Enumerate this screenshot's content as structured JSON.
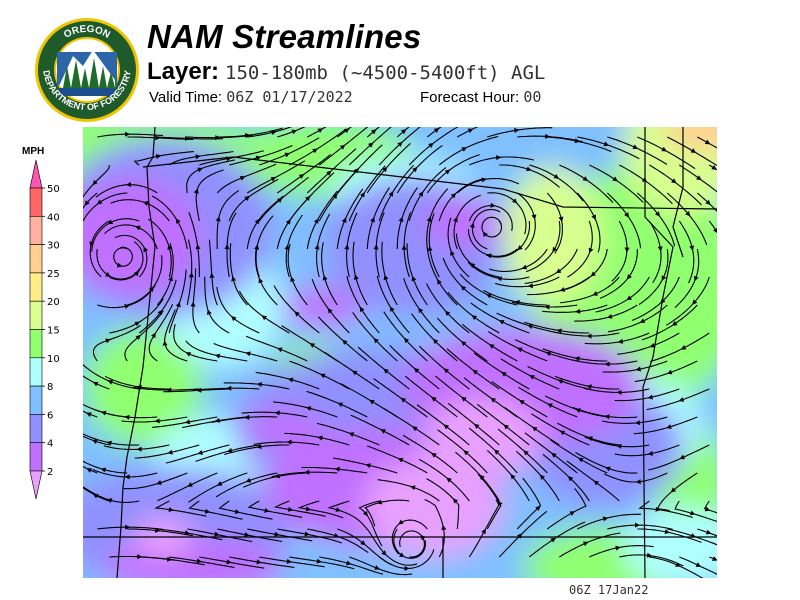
{
  "header": {
    "title": "NAM Streamlines",
    "layer_label": "Layer:",
    "layer_value": "150-180mb (~4500-5400ft) AGL",
    "valid_label": "Valid Time:",
    "valid_value": "06Z 01/17/2022",
    "forecast_label": "Forecast Hour:",
    "forecast_value": "00"
  },
  "logo": {
    "text_top": "OREGON",
    "text_bottom": "DEPARTMENT OF FORESTRY",
    "colors": {
      "ring": "#1e5a2a",
      "border": "#f2c400",
      "inner": "#ffffff",
      "water": "#1f4e8c"
    }
  },
  "legend": {
    "unit": "MPH",
    "ticks": [
      "50",
      "40",
      "30",
      "25",
      "20",
      "15",
      "10",
      "8",
      "6",
      "4",
      "2"
    ],
    "over_color": "#ff55b5",
    "under_color": "#e8a0ff",
    "bins": [
      {
        "range": "40-50",
        "color": "#ff6666"
      },
      {
        "range": "30-40",
        "color": "#ffb0a0"
      },
      {
        "range": "25-30",
        "color": "#ffd090"
      },
      {
        "range": "20-25",
        "color": "#ffee88"
      },
      {
        "range": "15-20",
        "color": "#d8ff90"
      },
      {
        "range": "10-15",
        "color": "#90ff70"
      },
      {
        "range": "8-10",
        "color": "#b0ffff"
      },
      {
        "range": "6-8",
        "color": "#80c0ff"
      },
      {
        "range": "4-6",
        "color": "#9090ff"
      },
      {
        "range": "2-4",
        "color": "#c070ff"
      }
    ]
  },
  "map": {
    "streamline_color": "#000000",
    "border_color": "#000000"
  },
  "footer": {
    "timestamp": "06Z 17Jan22"
  }
}
